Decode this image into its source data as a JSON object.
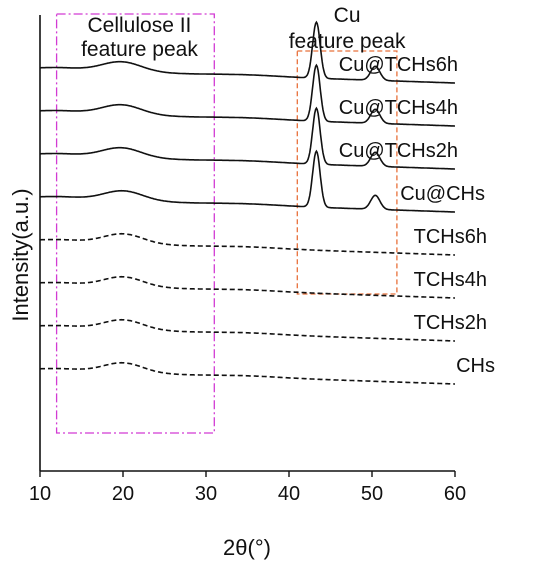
{
  "chart_data": {
    "type": "line",
    "xlabel": "2θ(°)",
    "ylabel": "Intensity(a.u.)",
    "xlim": [
      10,
      60
    ],
    "xticks": [
      "10",
      "20",
      "30",
      "40",
      "50",
      "60"
    ],
    "grid": false,
    "legend": "labels placed at the right end of each curve",
    "annotations": [
      {
        "label": "Cellulose II feature peak",
        "x_range": [
          12,
          31
        ],
        "color": "#d23bd3",
        "style": "dash-dot"
      },
      {
        "label": "Cu feature peak",
        "x_range": [
          41,
          53
        ],
        "color": "#e8703a",
        "style": "dashed"
      }
    ],
    "series": [
      {
        "name": "Cu@TCHs6h",
        "line": "solid",
        "offset": 7,
        "cellulose_peak_2theta": 19.8,
        "cu_peaks_2theta": [
          43.3,
          50.4
        ]
      },
      {
        "name": "Cu@TCHs4h",
        "line": "solid",
        "offset": 6,
        "cellulose_peak_2theta": 19.8,
        "cu_peaks_2theta": [
          43.3,
          50.4
        ]
      },
      {
        "name": "Cu@TCHs2h",
        "line": "solid",
        "offset": 5,
        "cellulose_peak_2theta": 19.8,
        "cu_peaks_2theta": [
          43.3,
          50.4
        ]
      },
      {
        "name": "Cu@CHs",
        "line": "solid",
        "offset": 4,
        "cellulose_peak_2theta": 20.0,
        "cu_peaks_2theta": [
          43.3,
          50.4
        ]
      },
      {
        "name": "TCHs6h",
        "line": "dashed",
        "offset": 3,
        "cellulose_peak_2theta": 20.0,
        "cu_peaks_2theta": []
      },
      {
        "name": "TCHs4h",
        "line": "dashed",
        "offset": 2,
        "cellulose_peak_2theta": 20.0,
        "cu_peaks_2theta": []
      },
      {
        "name": "TCHs2h",
        "line": "dashed",
        "offset": 1,
        "cellulose_peak_2theta": 20.0,
        "cu_peaks_2theta": []
      },
      {
        "name": "CHs",
        "line": "dashed",
        "offset": 0,
        "cellulose_peak_2theta": 20.0,
        "cu_peaks_2theta": []
      }
    ]
  }
}
